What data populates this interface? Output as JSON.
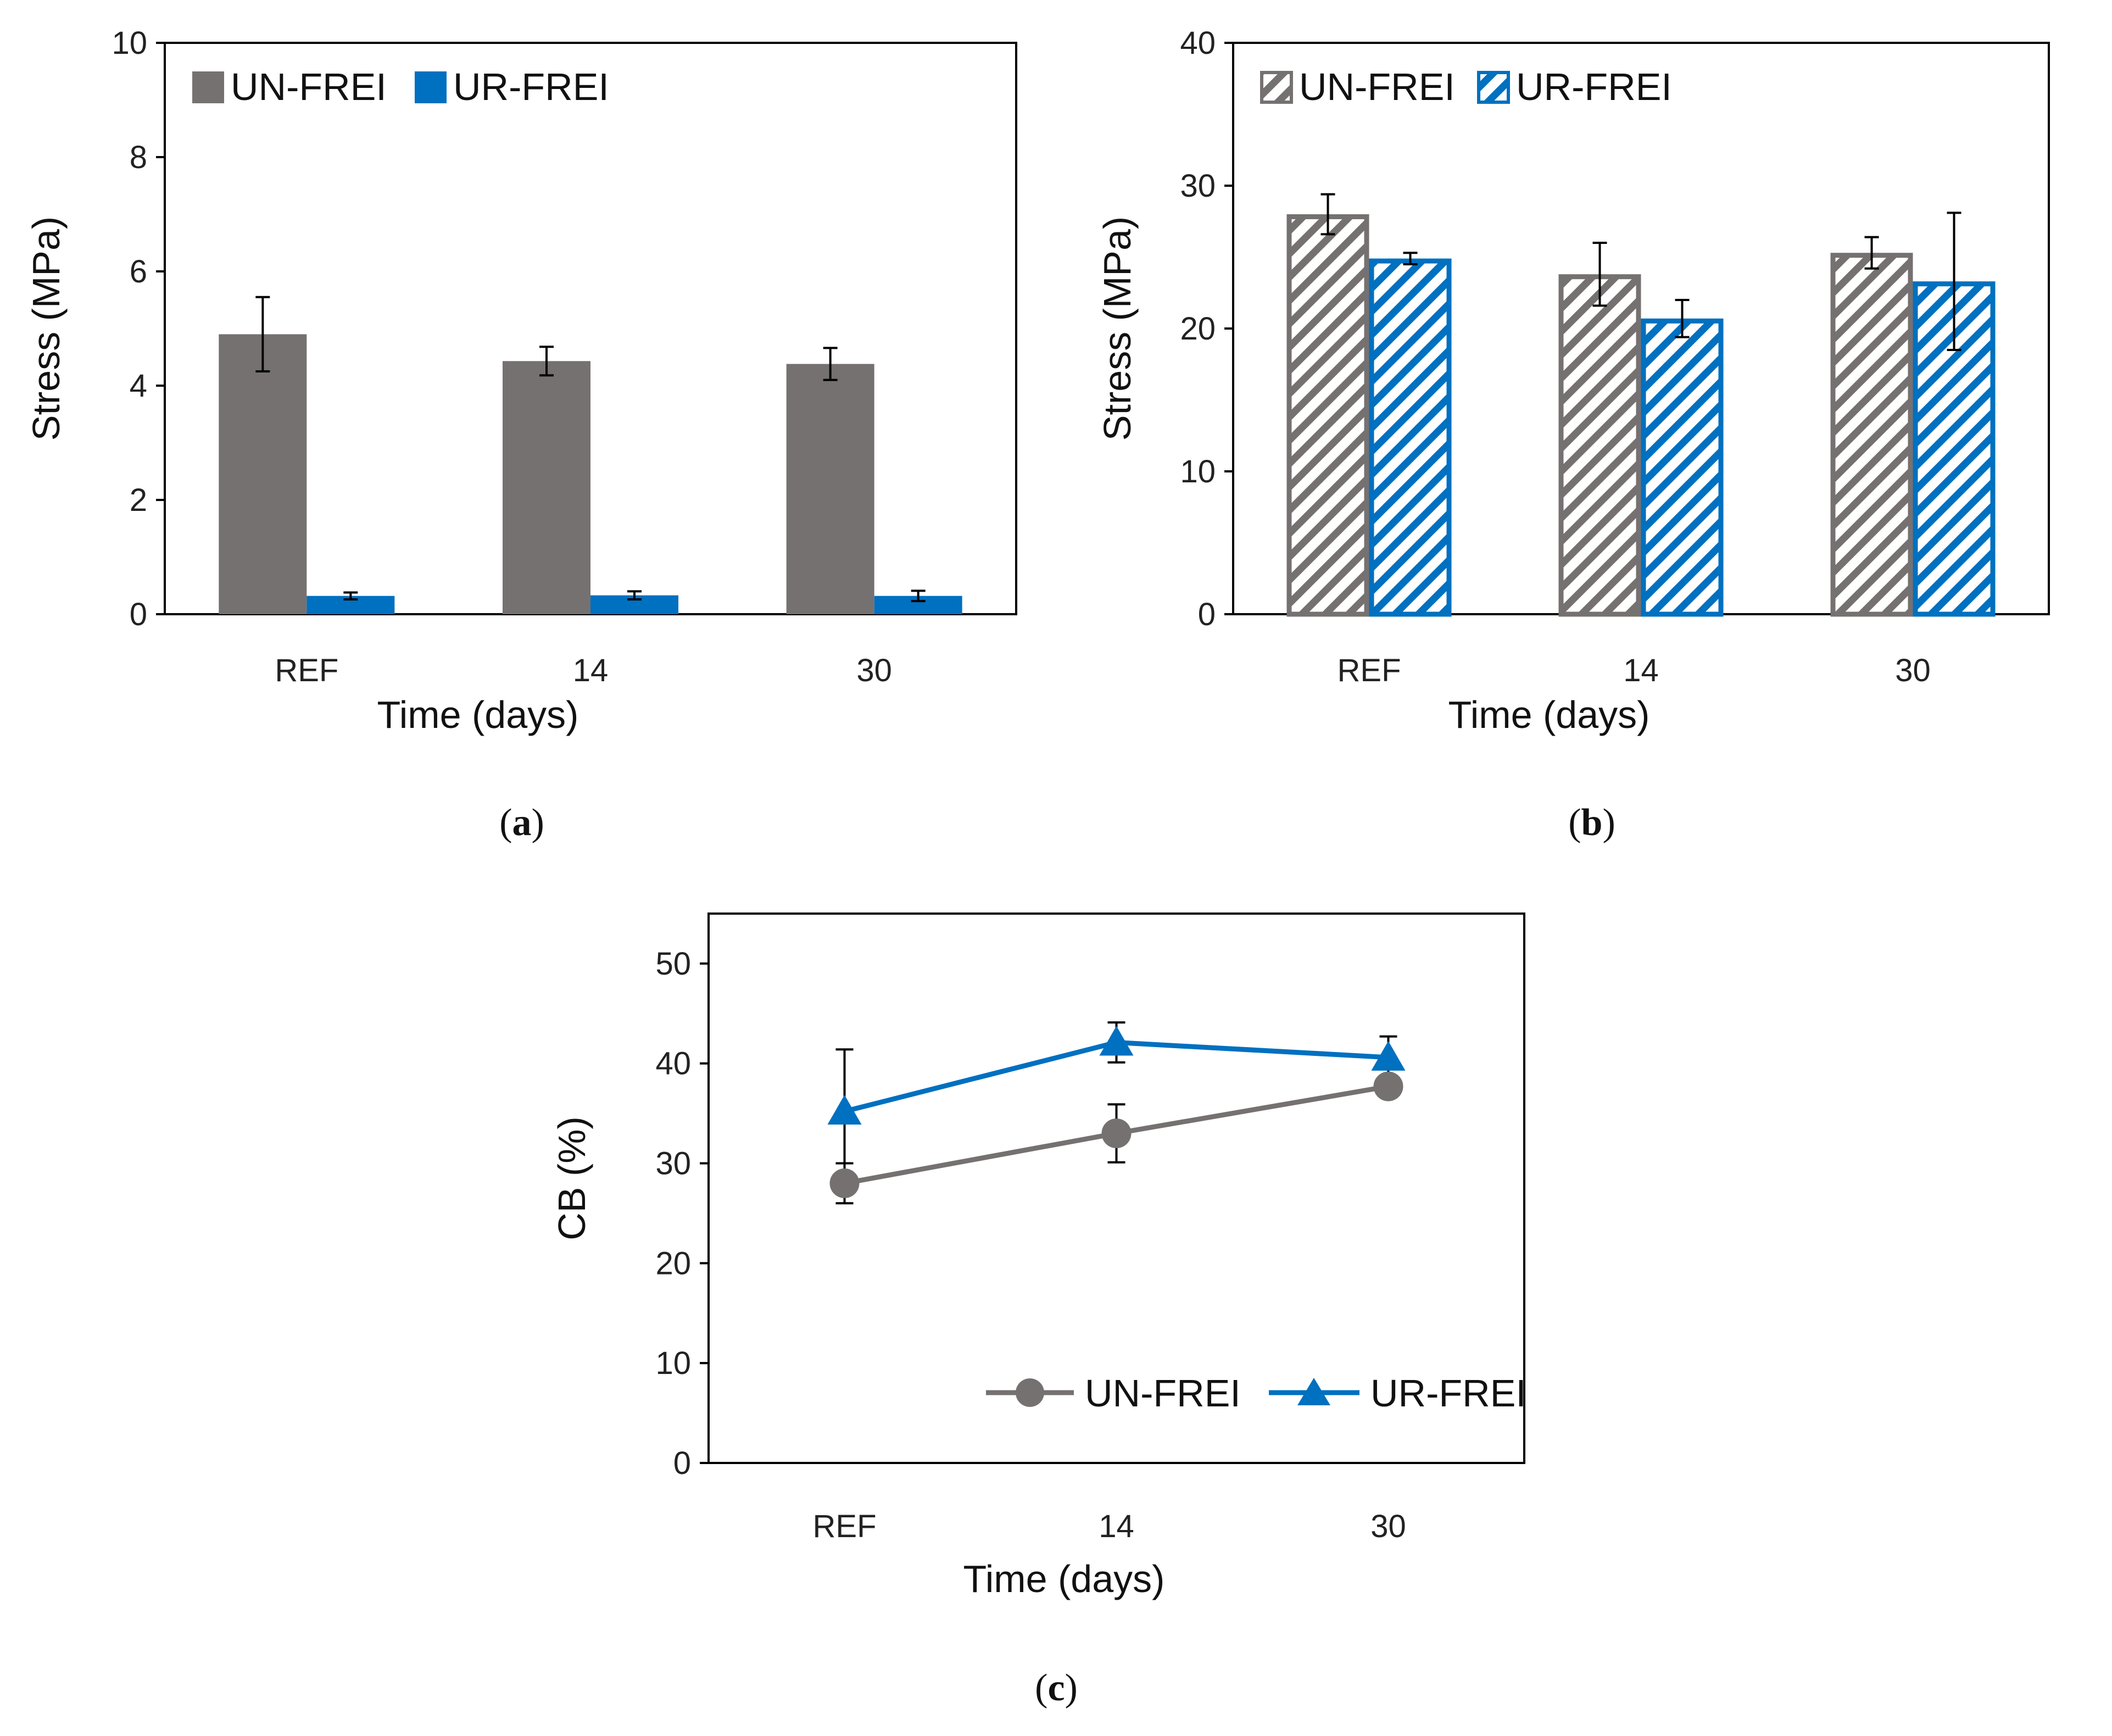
{
  "colors": {
    "gray": "#767171",
    "blue": "#0070C0",
    "axis": "#000000"
  },
  "chart_data": [
    {
      "type": "bar",
      "panel": "a",
      "caption": "a",
      "categories": [
        "REF",
        "14",
        "30"
      ],
      "xlabel": "Time (days)",
      "ylabel": "Stress (MPa)",
      "ylim": [
        0,
        10
      ],
      "yticks": [
        0,
        2,
        4,
        6,
        8,
        10
      ],
      "fill": "solid",
      "legend_position": "top-left",
      "series": [
        {
          "name": "UN-FREI",
          "color": "#767171",
          "values": [
            4.9,
            4.43,
            4.38
          ],
          "errors": [
            0.65,
            0.25,
            0.28
          ]
        },
        {
          "name": "UR-FREI",
          "color": "#0070C0",
          "values": [
            0.32,
            0.33,
            0.32
          ],
          "errors": [
            0.06,
            0.07,
            0.09
          ]
        }
      ]
    },
    {
      "type": "bar",
      "panel": "b",
      "caption": "b",
      "categories": [
        "REF",
        "14",
        "30"
      ],
      "xlabel": "Time (days)",
      "ylabel": "Stress (MPa)",
      "ylim": [
        0,
        40
      ],
      "yticks": [
        0,
        10,
        20,
        30,
        40
      ],
      "fill": "hatched",
      "legend_position": "top-left",
      "series": [
        {
          "name": "UN-FREI",
          "color": "#767171",
          "values": [
            28.0,
            23.8,
            25.3
          ],
          "errors": [
            1.4,
            2.2,
            1.1
          ]
        },
        {
          "name": "UR-FREI",
          "color": "#0070C0",
          "values": [
            24.9,
            20.7,
            23.3
          ],
          "errors": [
            0.4,
            1.3,
            4.8
          ]
        }
      ]
    },
    {
      "type": "line",
      "panel": "c",
      "caption": "c",
      "categories": [
        "REF",
        "14",
        "30"
      ],
      "xlabel": "Time (days)",
      "ylabel": "CB (%)",
      "ylim": [
        0,
        55
      ],
      "yticks": [
        0,
        10,
        20,
        30,
        40,
        50
      ],
      "legend_position": "bottom-right",
      "series": [
        {
          "name": "UN-FREI",
          "color": "#767171",
          "marker": "circle",
          "values": [
            28.0,
            33.0,
            37.7
          ],
          "errors": [
            2.0,
            2.9,
            0.8
          ]
        },
        {
          "name": "UR-FREI",
          "color": "#0070C0",
          "marker": "triangle",
          "values": [
            35.2,
            42.1,
            40.6
          ],
          "errors": [
            6.2,
            2.0,
            2.1
          ]
        }
      ]
    }
  ]
}
